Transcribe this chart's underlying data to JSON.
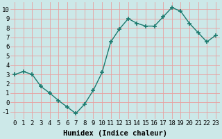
{
  "x": [
    0,
    1,
    2,
    3,
    4,
    5,
    6,
    7,
    8,
    9,
    10,
    11,
    12,
    13,
    14,
    15,
    16,
    17,
    18,
    19,
    20,
    21,
    22,
    23
  ],
  "y": [
    3.0,
    3.3,
    3.0,
    1.7,
    1.0,
    0.2,
    -0.5,
    -1.2,
    -0.2,
    1.3,
    3.2,
    6.5,
    7.9,
    9.0,
    8.5,
    8.2,
    8.2,
    9.2,
    10.2,
    9.8,
    8.5,
    7.5,
    6.5,
    7.2
  ],
  "line_color": "#1a7a6e",
  "marker": "+",
  "marker_size": 4,
  "marker_lw": 1.2,
  "bg_color": "#cce8e8",
  "grid_color": "#e8a0a0",
  "xlabel": "Humidex (Indice chaleur)",
  "ylim": [
    -1.8,
    10.8
  ],
  "xlim": [
    -0.5,
    23.5
  ],
  "yticks": [
    -1,
    0,
    1,
    2,
    3,
    4,
    5,
    6,
    7,
    8,
    9,
    10
  ],
  "xticks": [
    0,
    1,
    2,
    3,
    4,
    5,
    6,
    7,
    8,
    9,
    10,
    11,
    12,
    13,
    14,
    15,
    16,
    17,
    18,
    19,
    20,
    21,
    22,
    23
  ],
  "xlabel_fontsize": 7.5,
  "tick_fontsize": 6.5,
  "line_width": 1.0
}
